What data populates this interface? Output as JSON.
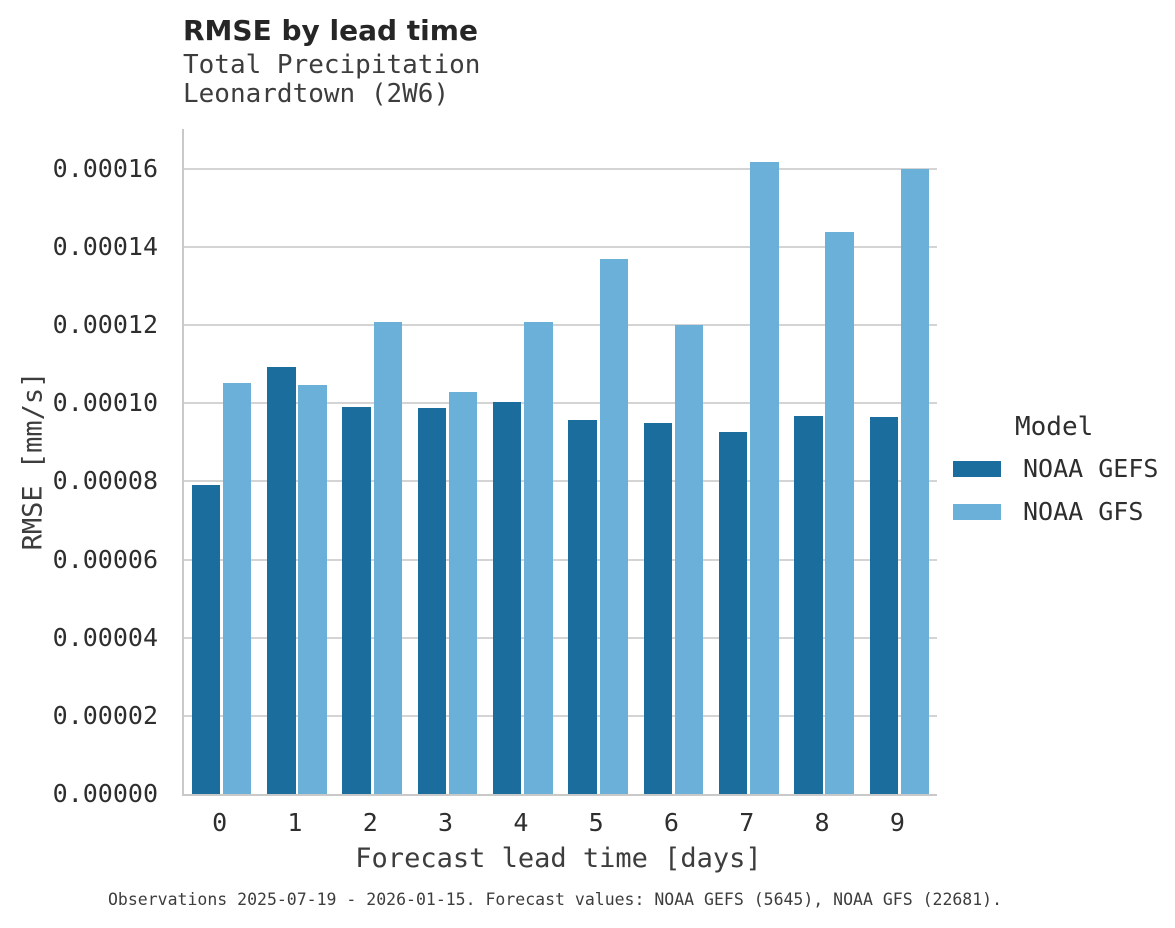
{
  "header": {
    "title": "RMSE by lead time",
    "subtitle_line1": "Total Precipitation",
    "subtitle_line2": "Leonardtown (2W6)"
  },
  "legend": {
    "title": "Model",
    "entries": [
      {
        "label": "NOAA GEFS",
        "color": "#1b6d9e"
      },
      {
        "label": "NOAA GFS",
        "color": "#6ab0d8"
      }
    ]
  },
  "footer": {
    "caption": "Observations 2025-07-19 - 2026-01-15. Forecast values: NOAA GEFS (5645), NOAA GFS (22681)."
  },
  "colors": {
    "gridline": "#d4d4d4",
    "spine": "#c9c9c9",
    "title_text": "#262626",
    "body_text": "#3d3d3d"
  },
  "chart_data": {
    "type": "bar",
    "title": "RMSE by lead time",
    "subtitle": [
      "Total Precipitation",
      "Leonardtown (2W6)"
    ],
    "xlabel": "Forecast lead time [days]",
    "ylabel": "RMSE [mm/s]",
    "categories": [
      "0",
      "1",
      "2",
      "3",
      "4",
      "5",
      "6",
      "7",
      "8",
      "9"
    ],
    "series": [
      {
        "name": "NOAA GEFS",
        "color": "#1b6d9e",
        "values": [
          7.9e-05,
          0.0001093,
          9.91e-05,
          9.87e-05,
          0.0001002,
          9.56e-05,
          9.49e-05,
          9.27e-05,
          9.66e-05,
          9.64e-05
        ]
      },
      {
        "name": "NOAA GFS",
        "color": "#6ab0d8",
        "values": [
          0.0001051,
          0.0001046,
          0.0001209,
          0.0001029,
          0.0001209,
          0.0001368,
          0.0001199,
          0.0001616,
          0.0001439,
          0.0001598
        ]
      }
    ],
    "yticks": [
      0.0,
      2e-05,
      4e-05,
      6e-05,
      8e-05,
      0.0001,
      0.00012,
      0.00014,
      0.00016
    ],
    "ytick_labels": [
      "0.00000",
      "0.00002",
      "0.00004",
      "0.00006",
      "0.00008",
      "0.00010",
      "0.00012",
      "0.00014",
      "0.00016"
    ],
    "ylim": [
      0,
      0.00017015
    ],
    "grid": "horizontal",
    "legend_position": "right",
    "legend_title": "Model"
  }
}
